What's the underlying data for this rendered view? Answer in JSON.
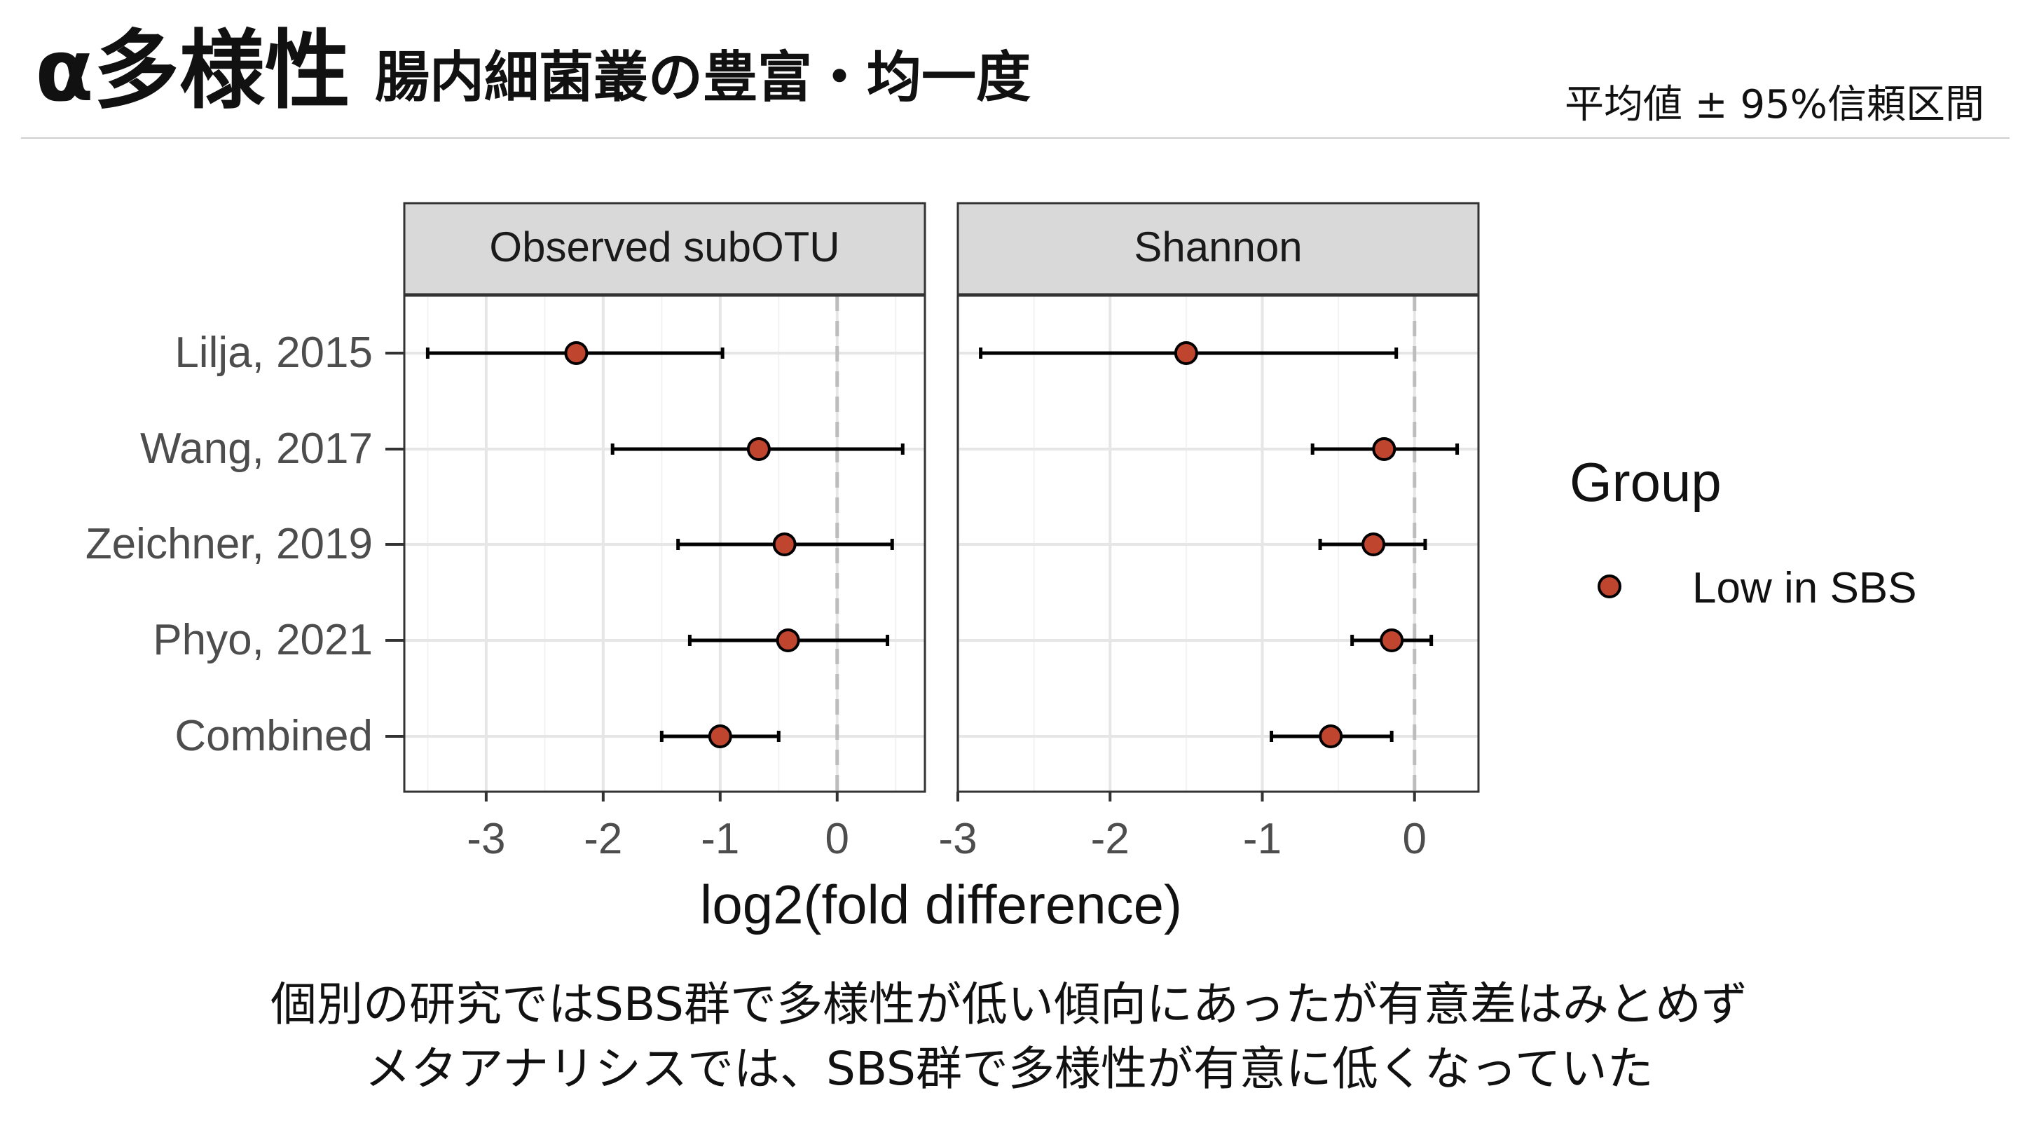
{
  "slide": {
    "title_main": "α多様性",
    "title_sub": "腸内細菌叢の豊富・均一度",
    "ci_note": "平均値 ± 95%信頼区間",
    "caption": [
      "個別の研究ではSBS群で多様性が低い傾向にあったが有意差はみとめず",
      "メタアナリシスでは、SBS群で多様性が有意に低くなっていた"
    ]
  },
  "chart_data": {
    "type": "scatter",
    "subtype": "forest plot (point estimate with 95% CI error bars), faceted",
    "xlabel": "log2(fold difference)",
    "categories": [
      "Lilja, 2015",
      "Wang, 2017",
      "Zeichner, 2019",
      "Phyo, 2021",
      "Combined"
    ],
    "legend": {
      "title": "Group",
      "position": "right",
      "entries": [
        {
          "label": "Low in SBS",
          "color": "#C0452F"
        }
      ]
    },
    "point_color": "#C0452F",
    "reference_line_x": 0,
    "grid": true,
    "panels": [
      {
        "name": "Observed subOTU",
        "xlim": [
          -3.7,
          0.75
        ],
        "xticks": [
          -3,
          -2,
          -1,
          0
        ],
        "series": [
          {
            "study": "Lilja, 2015",
            "estimate": -2.23,
            "ci_low": -3.5,
            "ci_high": -0.98
          },
          {
            "study": "Wang, 2017",
            "estimate": -0.67,
            "ci_low": -1.92,
            "ci_high": 0.56
          },
          {
            "study": "Zeichner, 2019",
            "estimate": -0.45,
            "ci_low": -1.36,
            "ci_high": 0.47
          },
          {
            "study": "Phyo, 2021",
            "estimate": -0.42,
            "ci_low": -1.26,
            "ci_high": 0.43
          },
          {
            "study": "Combined",
            "estimate": -1.0,
            "ci_low": -1.5,
            "ci_high": -0.5
          }
        ]
      },
      {
        "name": "Shannon",
        "xlim": [
          -3.0,
          0.42
        ],
        "xticks": [
          -3,
          -2,
          -1,
          0
        ],
        "series": [
          {
            "study": "Lilja, 2015",
            "estimate": -1.5,
            "ci_low": -2.85,
            "ci_high": -0.12
          },
          {
            "study": "Wang, 2017",
            "estimate": -0.2,
            "ci_low": -0.67,
            "ci_high": 0.28
          },
          {
            "study": "Zeichner, 2019",
            "estimate": -0.27,
            "ci_low": -0.62,
            "ci_high": 0.07
          },
          {
            "study": "Phyo, 2021",
            "estimate": -0.15,
            "ci_low": -0.41,
            "ci_high": 0.11
          },
          {
            "study": "Combined",
            "estimate": -0.55,
            "ci_low": -0.94,
            "ci_high": -0.15
          }
        ]
      }
    ]
  }
}
